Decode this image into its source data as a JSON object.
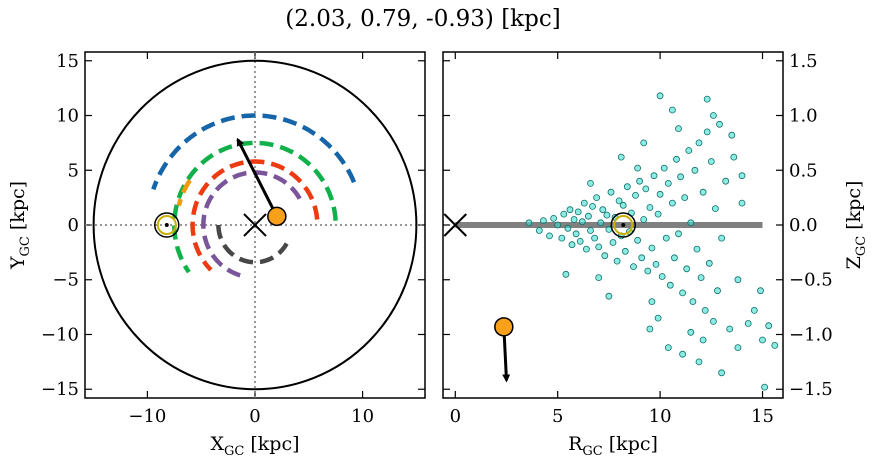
{
  "title": "(2.03, 0.79, -0.93) [kpc]",
  "chart_data": [
    {
      "type": "scatter",
      "panel": "left",
      "xlabel": "X",
      "xlabel_sub": "GC",
      "xlabel_unit": " [kpc]",
      "ylabel": "Y",
      "ylabel_sub": "GC",
      "ylabel_unit": " [kpc]",
      "xlim": [
        -15.8,
        15.8
      ],
      "ylim": [
        -15.8,
        15.8
      ],
      "xticks": [
        -10,
        0,
        10
      ],
      "yticks": [
        -15,
        -10,
        -5,
        0,
        5,
        10,
        15
      ],
      "xtick_labels": [
        "−10",
        "0",
        "10"
      ],
      "ytick_labels": [
        "−15",
        "−10",
        "−5",
        "0",
        "5",
        "10",
        "15"
      ],
      "boundary_circle_radius": 15,
      "galactic_center": [
        0,
        0
      ],
      "sun_position": [
        -8.2,
        0
      ],
      "object_position": [
        2.03,
        0.79
      ],
      "velocity_arrow_tip": [
        -1.6,
        7.8
      ],
      "spiral_arms": [
        {
          "color": "#1565a8",
          "radius": 10.0,
          "theta_start": 23,
          "theta_end": 162
        },
        {
          "color": "#12b04a",
          "radius": 7.5,
          "theta_start": 3,
          "theta_end": 215
        },
        {
          "color": "#f09a10",
          "radius": 7.3,
          "theta_start": 146,
          "theta_end": 166
        },
        {
          "color": "#ee3a10",
          "radius": 5.8,
          "theta_start": 5,
          "theta_end": 225
        },
        {
          "color": "#7a559a",
          "radius": 4.8,
          "theta_start": 30,
          "theta_end": 260
        },
        {
          "color": "#474747",
          "radius": 3.4,
          "theta_start": 180,
          "theta_end": 330
        }
      ]
    },
    {
      "type": "scatter",
      "panel": "right",
      "xlabel": "R",
      "xlabel_sub": "GC",
      "xlabel_unit": " [kpc]",
      "ylabel": "Z",
      "ylabel_sub": "GC",
      "ylabel_unit": " [kpc]",
      "xlim": [
        -0.6,
        16.0
      ],
      "ylim": [
        -1.58,
        1.58
      ],
      "xticks": [
        0,
        5,
        10,
        15
      ],
      "yticks": [
        -1.5,
        -1.0,
        -0.5,
        0.0,
        0.5,
        1.0,
        1.5
      ],
      "xtick_labels": [
        "0",
        "5",
        "10",
        "15"
      ],
      "ytick_labels": [
        "−1.5",
        "−1.0",
        "−0.5",
        "0.0",
        "0.5",
        "1.0",
        "1.5"
      ],
      "disk_plane": {
        "r_start": 0,
        "r_end": 15,
        "z": 0
      },
      "galactic_center": [
        0,
        0
      ],
      "sun_position": [
        8.2,
        0
      ],
      "object_position": [
        2.37,
        -0.93
      ],
      "velocity_arrow_tip": [
        2.5,
        -1.42
      ],
      "star_color": "#40e0d0",
      "stars": [
        [
          3.6,
          0.02
        ],
        [
          4.1,
          -0.05
        ],
        [
          4.3,
          0.04
        ],
        [
          4.6,
          -0.1
        ],
        [
          4.8,
          0.06
        ],
        [
          5.0,
          0.0
        ],
        [
          5.2,
          -0.12
        ],
        [
          5.3,
          0.1
        ],
        [
          5.5,
          -0.03
        ],
        [
          5.6,
          0.14
        ],
        [
          5.7,
          -0.18
        ],
        [
          5.8,
          0.05
        ],
        [
          5.9,
          -0.08
        ],
        [
          6.0,
          0.12
        ],
        [
          6.1,
          -0.15
        ],
        [
          6.2,
          0.03
        ],
        [
          6.3,
          0.2
        ],
        [
          6.4,
          -0.22
        ],
        [
          6.5,
          0.08
        ],
        [
          6.6,
          -0.05
        ],
        [
          6.7,
          0.17
        ],
        [
          6.8,
          -0.12
        ],
        [
          6.9,
          0.25
        ],
        [
          7.0,
          -0.2
        ],
        [
          7.1,
          0.02
        ],
        [
          7.2,
          0.14
        ],
        [
          7.3,
          -0.28
        ],
        [
          7.4,
          0.09
        ],
        [
          7.5,
          -0.04
        ],
        [
          7.6,
          0.3
        ],
        [
          7.7,
          -0.16
        ],
        [
          7.8,
          0.07
        ],
        [
          7.9,
          -0.33
        ],
        [
          8.0,
          0.22
        ],
        [
          8.1,
          -0.1
        ],
        [
          8.2,
          0.18
        ],
        [
          8.3,
          -0.24
        ],
        [
          8.4,
          0.35
        ],
        [
          8.5,
          -0.06
        ],
        [
          8.6,
          0.11
        ],
        [
          8.7,
          -0.38
        ],
        [
          8.8,
          0.27
        ],
        [
          8.9,
          -0.14
        ],
        [
          9.0,
          0.4
        ],
        [
          9.1,
          -0.3
        ],
        [
          9.2,
          0.05
        ],
        [
          9.3,
          0.33
        ],
        [
          9.4,
          -0.42
        ],
        [
          9.5,
          0.16
        ],
        [
          9.6,
          -0.21
        ],
        [
          9.7,
          0.45
        ],
        [
          9.8,
          -0.36
        ],
        [
          9.9,
          0.1
        ],
        [
          10.0,
          0.28
        ],
        [
          10.1,
          -0.47
        ],
        [
          10.2,
          0.52
        ],
        [
          10.3,
          -0.12
        ],
        [
          10.4,
          0.38
        ],
        [
          10.5,
          -0.55
        ],
        [
          10.6,
          0.2
        ],
        [
          10.7,
          -0.3
        ],
        [
          10.8,
          0.6
        ],
        [
          10.9,
          -0.08
        ],
        [
          11.0,
          0.44
        ],
        [
          11.1,
          -0.62
        ],
        [
          11.2,
          0.25
        ],
        [
          11.3,
          -0.4
        ],
        [
          11.4,
          0.68
        ],
        [
          11.5,
          0.02
        ],
        [
          11.6,
          -0.7
        ],
        [
          11.7,
          0.5
        ],
        [
          11.8,
          -0.22
        ],
        [
          11.9,
          0.75
        ],
        [
          12.0,
          -0.48
        ],
        [
          12.1,
          0.3
        ],
        [
          12.2,
          -0.78
        ],
        [
          12.3,
          0.85
        ],
        [
          12.4,
          -0.35
        ],
        [
          12.5,
          0.58
        ],
        [
          12.6,
          -0.88
        ],
        [
          12.7,
          0.15
        ],
        [
          12.8,
          -0.6
        ],
        [
          12.9,
          0.92
        ],
        [
          13.0,
          -0.12
        ],
        [
          13.2,
          0.4
        ],
        [
          13.4,
          -0.95
        ],
        [
          13.6,
          0.62
        ],
        [
          13.8,
          -0.5
        ],
        [
          14.0,
          0.2
        ],
        [
          14.3,
          -0.9
        ],
        [
          14.6,
          -0.78
        ],
        [
          15.0,
          -1.05
        ],
        [
          15.3,
          -0.92
        ],
        [
          15.6,
          -1.1
        ],
        [
          15.1,
          -1.48
        ],
        [
          5.4,
          -0.45
        ],
        [
          7.5,
          -0.65
        ],
        [
          10.0,
          1.18
        ],
        [
          12.3,
          1.15
        ],
        [
          10.4,
          -1.12
        ],
        [
          11.1,
          -1.18
        ],
        [
          13.0,
          -1.35
        ],
        [
          9.9,
          -0.85
        ],
        [
          11.5,
          -0.98
        ],
        [
          13.8,
          -1.12
        ],
        [
          9.2,
          0.75
        ],
        [
          10.6,
          1.05
        ],
        [
          8.9,
          0.52
        ],
        [
          12.6,
          1.0
        ],
        [
          14.0,
          0.45
        ],
        [
          6.6,
          0.38
        ],
        [
          7.0,
          -0.48
        ],
        [
          8.1,
          0.62
        ],
        [
          9.6,
          -0.7
        ],
        [
          11.9,
          -1.25
        ],
        [
          14.9,
          -0.6
        ],
        [
          13.5,
          0.82
        ],
        [
          12.1,
          -1.05
        ],
        [
          10.9,
          0.88
        ],
        [
          9.5,
          -0.95
        ]
      ]
    }
  ]
}
